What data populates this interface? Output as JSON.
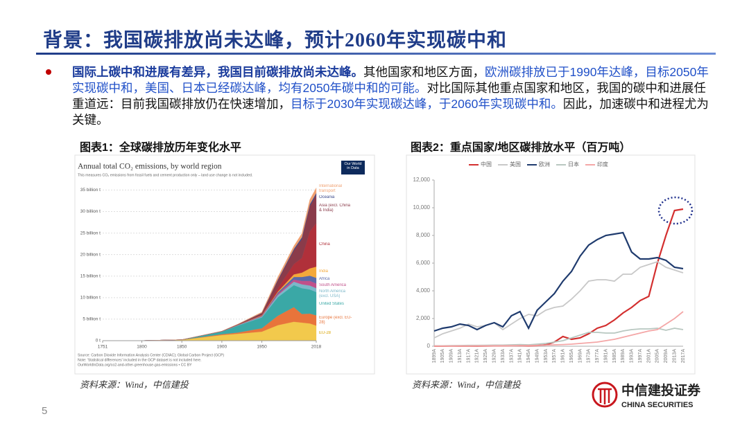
{
  "header": {
    "title": "背景：我国碳排放尚未达峰，预计2060年实现碳中和"
  },
  "bullet": {
    "segments": [
      {
        "text": "国际上碳中和进展有差异，我国目前碳排放尚未达峰。",
        "style": "bold-blue"
      },
      {
        "text": "其他国家和地区方面，",
        "style": "plain"
      },
      {
        "text": "欧洲碳排放已于1990年达峰，目标2050年实现碳中和，美国、日本已经碳达峰，均有2050年碳中和的可能。",
        "style": "blue"
      },
      {
        "text": "对比国际其他重点国家和地区，我国的碳中和进展任重道远：目前我国碳排放仍在快速增加，",
        "style": "plain"
      },
      {
        "text": "目标于2030年实现碳达峰，于2060年实现碳中和。",
        "style": "blue"
      },
      {
        "text": "因此，加速碳中和进程尤为关键。",
        "style": "plain"
      }
    ]
  },
  "figures": [
    {
      "caption": "图表1：全球碳排放历年变化水平",
      "source": "资料来源：Wind，中信建投"
    },
    {
      "caption": "图表2：重点国家/地区碳排放水平（百万吨）",
      "source": "资料来源：Wind，中信建投"
    }
  ],
  "chart_data": [
    {
      "type": "stacked_area",
      "title": "Annual total CO₂ emissions, by world region",
      "subtitle": "This measures CO₂ emissions from fossil fuels and cement production only – land use change is not included.",
      "badge": "Our World in Data",
      "notes": [
        "Source: Carbon Dioxide Information Analysis Center (CDIAC); Global Carbon Project (GCP)",
        "Note: 'Statistical differences' included in the GCP dataset is not included here.",
        "OurWorldInData.org/co2-and-other-greenhouse-gas-emissions • CC BY"
      ],
      "x": [
        1751,
        1800,
        1850,
        1900,
        1920,
        1950,
        1970,
        1990,
        2000,
        2010,
        2018
      ],
      "xlim": [
        1751,
        2018
      ],
      "xticks": [
        1751,
        1800,
        1850,
        1900,
        1950,
        2018
      ],
      "ylim": [
        0,
        37
      ],
      "yticks": [
        {
          "value": 0,
          "label": "0 t"
        },
        {
          "value": 5,
          "label": "5 billion t"
        },
        {
          "value": 10,
          "label": "10 billion t"
        },
        {
          "value": 15,
          "label": "15 billion t"
        },
        {
          "value": 20,
          "label": "20 billion t"
        },
        {
          "value": 25,
          "label": "25 billion t"
        },
        {
          "value": 30,
          "label": "30 billion t"
        },
        {
          "value": 35,
          "label": "35 billion t"
        }
      ],
      "grid": true,
      "series": [
        {
          "name": "EU-28",
          "color": "#f2c94c",
          "values": [
            0.01,
            0.03,
            0.2,
            1.3,
            1.6,
            2.1,
            3.6,
            4.4,
            4.2,
            4.0,
            3.5
          ]
        },
        {
          "name": "Europe (excl. EU-28)",
          "color": "#e8743b",
          "values": [
            0,
            0,
            0.01,
            0.2,
            0.3,
            0.8,
            2.2,
            3.4,
            2.0,
            2.3,
            2.4
          ]
        },
        {
          "name": "United States",
          "color": "#3aa8a6",
          "values": [
            0,
            0,
            0.02,
            0.6,
            1.6,
            2.5,
            4.3,
            5.1,
            6.0,
            5.6,
            5.4
          ]
        },
        {
          "name": "North America (excl. USA)",
          "color": "#7bb7c9",
          "values": [
            0,
            0,
            0,
            0.03,
            0.08,
            0.2,
            0.5,
            0.8,
            0.9,
            0.9,
            0.9
          ]
        },
        {
          "name": "South America",
          "color": "#c0508a",
          "values": [
            0,
            0,
            0,
            0.01,
            0.04,
            0.1,
            0.3,
            0.5,
            0.8,
            1.1,
            1.1
          ]
        },
        {
          "name": "Africa",
          "color": "#5b6aa8",
          "values": [
            0,
            0,
            0,
            0.01,
            0.03,
            0.1,
            0.3,
            0.6,
            0.9,
            1.2,
            1.3
          ]
        },
        {
          "name": "India",
          "color": "#f4a83a",
          "values": [
            0,
            0,
            0,
            0.02,
            0.05,
            0.1,
            0.2,
            0.6,
            1.0,
            1.7,
            2.6
          ]
        },
        {
          "name": "China",
          "color": "#b0303a",
          "values": [
            0,
            0,
            0,
            0.01,
            0.03,
            0.1,
            0.8,
            2.4,
            3.4,
            8.6,
            10.1
          ]
        },
        {
          "name": "Asia (excl. China & India)",
          "color": "#8a3b4a",
          "values": [
            0,
            0,
            0,
            0.02,
            0.06,
            0.4,
            1.8,
            3.2,
            4.4,
            5.9,
            6.6
          ]
        },
        {
          "name": "Oceania",
          "color": "#3b4a8c",
          "values": [
            0,
            0,
            0,
            0.01,
            0.02,
            0.05,
            0.2,
            0.3,
            0.4,
            0.4,
            0.4
          ]
        },
        {
          "name": "International transport",
          "color": "#f0a070",
          "values": [
            0,
            0,
            0,
            0.02,
            0.05,
            0.2,
            0.6,
            0.7,
            0.9,
            1.1,
            1.2
          ]
        }
      ]
    },
    {
      "type": "line",
      "categories": [
        "1899A",
        "1905A",
        "1909A",
        "1913A",
        "1917A",
        "1921A",
        "1925A",
        "1929A",
        "1933A",
        "1937A",
        "1941A",
        "1945A",
        "1949A",
        "1953A",
        "1957A",
        "1961A",
        "1965A",
        "1969A",
        "1973A",
        "1977A",
        "1981A",
        "1985A",
        "1989A",
        "1993A",
        "1997A",
        "2001A",
        "2005A",
        "2009A",
        "2013A",
        "2017A"
      ],
      "ylim": [
        0,
        12000
      ],
      "yticks": [
        0,
        {
          "value": 2000,
          "label": "2,000"
        },
        {
          "value": 4000,
          "label": "4,000"
        },
        {
          "value": 6000,
          "label": "6,000"
        },
        {
          "value": 8000,
          "label": "8,000"
        },
        {
          "value": 10000,
          "label": "10,000"
        },
        {
          "value": 12000,
          "label": "12,000"
        }
      ],
      "series": [
        {
          "name": "中国",
          "color": "#d32f2f",
          "values": [
            5,
            10,
            15,
            20,
            20,
            20,
            25,
            30,
            30,
            40,
            50,
            30,
            50,
            100,
            300,
            700,
            500,
            600,
            900,
            1300,
            1500,
            1900,
            2400,
            2800,
            3300,
            3600,
            6000,
            8000,
            9800,
            9900
          ]
        },
        {
          "name": "美国",
          "color": "#c8c8c8",
          "values": [
            600,
            900,
            1100,
            1300,
            1600,
            1400,
            1500,
            1700,
            1200,
            1600,
            2000,
            2300,
            2200,
            2600,
            2800,
            2900,
            3400,
            4000,
            4700,
            4800,
            4800,
            4700,
            5200,
            5200,
            5700,
            5900,
            6100,
            5700,
            5500,
            5300
          ]
        },
        {
          "name": "欧洲",
          "color": "#1f3b6e",
          "values": [
            1100,
            1300,
            1400,
            1600,
            1500,
            1200,
            1500,
            1700,
            1400,
            2200,
            2500,
            1300,
            2600,
            3200,
            3800,
            4700,
            5400,
            6500,
            7300,
            7700,
            8000,
            8100,
            8200,
            6800,
            6300,
            6300,
            6400,
            6200,
            5700,
            5600
          ]
        },
        {
          "name": "日本",
          "color": "#b8c7c0",
          "values": [
            20,
            30,
            40,
            50,
            60,
            60,
            70,
            80,
            80,
            100,
            120,
            100,
            150,
            200,
            300,
            400,
            600,
            800,
            1000,
            1000,
            950,
            950,
            1100,
            1200,
            1250,
            1250,
            1300,
            1150,
            1300,
            1200
          ]
        },
        {
          "name": "印度",
          "color": "#f4a6a6",
          "values": [
            10,
            15,
            20,
            25,
            25,
            30,
            30,
            35,
            35,
            40,
            50,
            50,
            60,
            80,
            100,
            120,
            150,
            200,
            250,
            300,
            400,
            500,
            650,
            800,
            950,
            1100,
            1200,
            1600,
            2000,
            2500
          ]
        }
      ]
    }
  ],
  "page_number": "5",
  "logo": {
    "name": "中信建投证券",
    "name_en": "CHINA SECURITIES"
  }
}
